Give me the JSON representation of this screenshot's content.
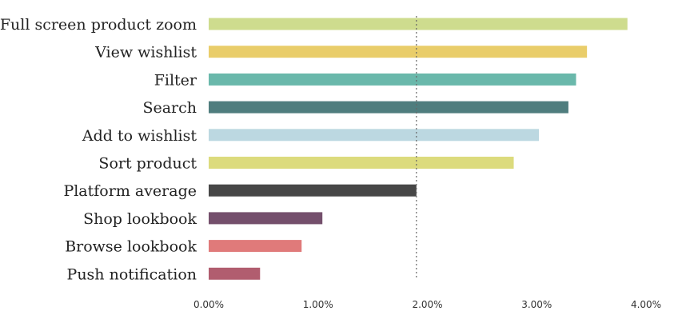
{
  "chart_data": {
    "type": "bar",
    "orientation": "horizontal",
    "categories": [
      "Full screen product zoom",
      "View wishlist",
      "Filter",
      "Search",
      "Add to wishlist",
      "Sort product",
      "Platform average",
      "Shop lookbook",
      "Browse lookbook",
      "Push notification"
    ],
    "values": [
      3.83,
      3.46,
      3.36,
      3.29,
      3.02,
      2.79,
      1.9,
      1.04,
      0.85,
      0.47
    ],
    "colors": [
      "#cedc8e",
      "#e9cd6a",
      "#6ab8ab",
      "#4f7d7e",
      "#bcd8e1",
      "#dcdb7d",
      "#474747",
      "#744f6c",
      "#e07a7a",
      "#b15d6f"
    ],
    "xlim": [
      0,
      4
    ],
    "xticks": [
      0,
      1,
      2,
      3,
      4
    ],
    "xtick_labels": [
      "0.00%",
      "1.00%",
      "2.00%",
      "3.00%",
      "4.00%"
    ],
    "reference_line": {
      "value": 1.9,
      "style": "dotted",
      "color": "#666666"
    },
    "title": "",
    "xlabel": "",
    "ylabel": "",
    "grid": false,
    "legend": "none"
  }
}
